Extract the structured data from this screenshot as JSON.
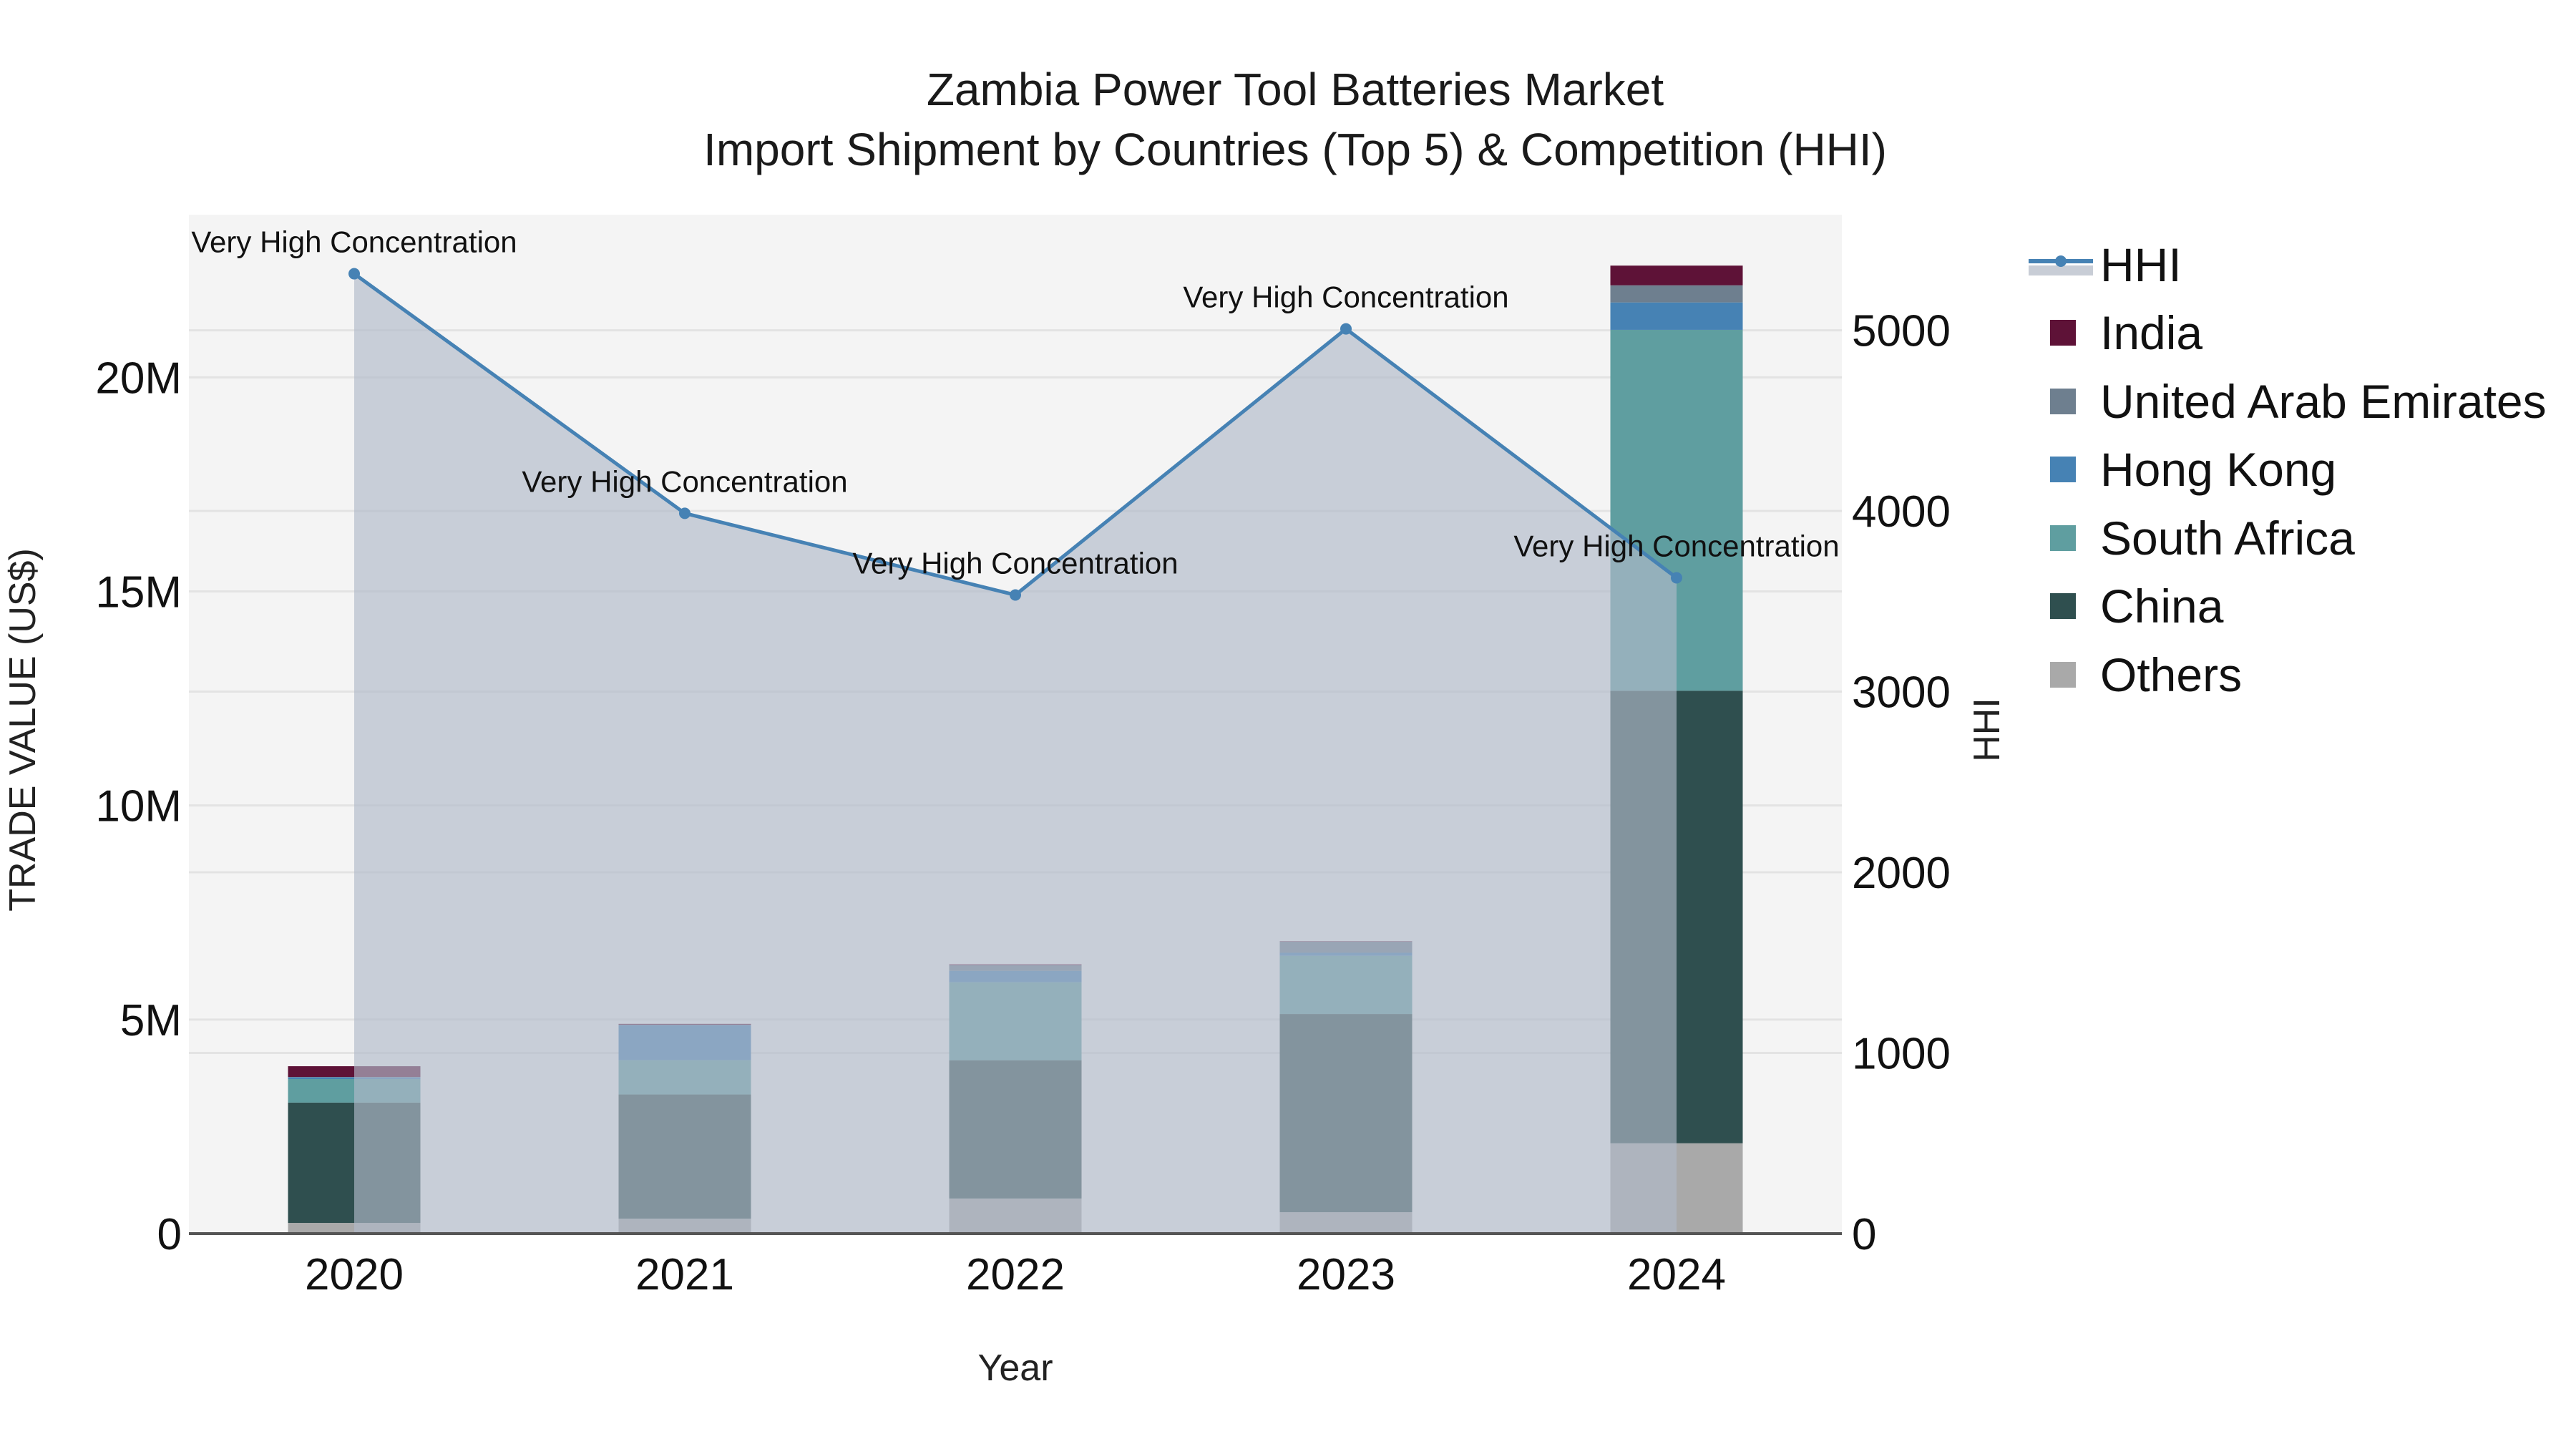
{
  "title": {
    "line1": "Zambia Power Tool Batteries Market",
    "line2": "Import Shipment by Countries (Top 5) & Competition (HHI)"
  },
  "axes": {
    "x_title": "Year",
    "y_title": "TRADE VALUE (US$)",
    "y2_title": "HHI",
    "y_ticks": [
      "0",
      "5M",
      "10M",
      "15M",
      "20M"
    ],
    "y2_ticks": [
      "0",
      "1000",
      "2000",
      "3000",
      "4000",
      "5000"
    ]
  },
  "legend": {
    "items": [
      {
        "label": "HHI",
        "type": "line",
        "color": "#4682b4"
      },
      {
        "label": "India",
        "type": "bar",
        "color": "#5e1237"
      },
      {
        "label": "United Arab Emirates",
        "type": "bar",
        "color": "#6e7f8f"
      },
      {
        "label": "Hong Kong",
        "type": "bar",
        "color": "#4682b4"
      },
      {
        "label": "South Africa",
        "type": "bar",
        "color": "#5f9ea0"
      },
      {
        "label": "China",
        "type": "bar",
        "color": "#2f4f4f"
      },
      {
        "label": "Others",
        "type": "bar",
        "color": "#a9a9a9"
      }
    ]
  },
  "colors": {
    "plot_bg": "#f4f4f4",
    "grid": "#e3e3e3",
    "hhi_line": "#4682b4",
    "hhi_fill": "rgba(176,186,201,0.65)",
    "axis_line": "#555555"
  },
  "chart_data": {
    "type": "bar",
    "stacked": true,
    "title": "Zambia Power Tool Batteries Market — Import Shipment by Countries (Top 5) & Competition (HHI)",
    "xlabel": "Year",
    "ylabel": "TRADE VALUE (US$)",
    "y2label": "HHI",
    "categories": [
      "2020",
      "2021",
      "2022",
      "2023",
      "2024"
    ],
    "ylim": [
      0,
      23800000
    ],
    "y2lim": [
      0,
      5640
    ],
    "grid": true,
    "legend_position": "right",
    "series": [
      {
        "name": "Others",
        "color": "#a9a9a9",
        "values": [
          250000,
          350000,
          820000,
          500000,
          2110000
        ]
      },
      {
        "name": "China",
        "color": "#2f4f4f",
        "values": [
          2810000,
          2900000,
          3230000,
          4630000,
          10570000
        ]
      },
      {
        "name": "South Africa",
        "color": "#5f9ea0",
        "values": [
          550000,
          800000,
          1820000,
          1360000,
          8430000
        ]
      },
      {
        "name": "Hong Kong",
        "color": "#4682b4",
        "values": [
          40000,
          820000,
          270000,
          70000,
          640000
        ]
      },
      {
        "name": "United Arab Emirates",
        "color": "#6e7f8f",
        "values": [
          10000,
          10000,
          130000,
          260000,
          400000
        ]
      },
      {
        "name": "India",
        "color": "#5e1237",
        "values": [
          250000,
          20000,
          20000,
          10000,
          460000
        ]
      }
    ],
    "line_series": {
      "name": "HHI",
      "axis": "y2",
      "type": "line+area",
      "color": "#4682b4",
      "values": [
        5313,
        3987,
        3535,
        5008,
        3630
      ],
      "annotations": [
        "Very High Concentration",
        "Very High Concentration",
        "Very High Concentration",
        "Very High Concentration",
        "Very High Concentration"
      ]
    }
  }
}
